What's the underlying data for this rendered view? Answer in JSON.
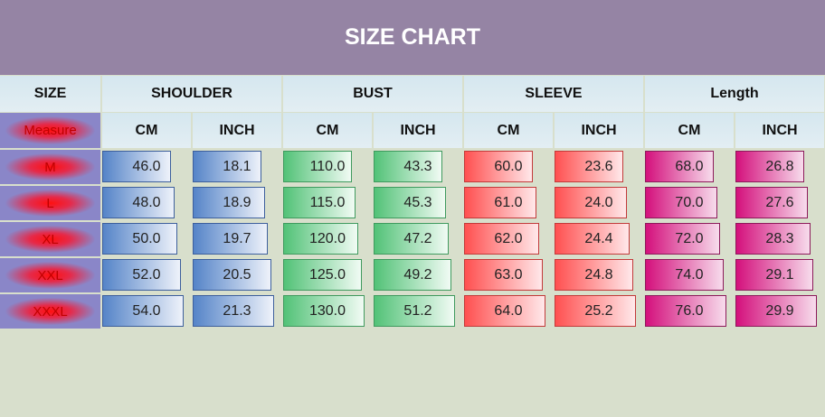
{
  "header": {
    "title": "SIZE CHART"
  },
  "table": {
    "group_header": [
      "SIZE",
      "SHOULDER",
      "BUST",
      "SLEEVE",
      "Length"
    ],
    "sub_header": [
      "Measure",
      "CM",
      "INCH",
      "CM",
      "INCH",
      "CM",
      "INCH",
      "CM",
      "INCH"
    ],
    "rows": [
      [
        "M",
        "46.0",
        "18.1",
        "110.0",
        "43.3",
        "60.0",
        "23.6",
        "68.0",
        "26.8"
      ],
      [
        "L",
        "48.0",
        "18.9",
        "115.0",
        "45.3",
        "61.0",
        "24.0",
        "70.0",
        "27.6"
      ],
      [
        "XL",
        "50.0",
        "19.7",
        "120.0",
        "47.2",
        "62.0",
        "24.4",
        "72.0",
        "28.3"
      ],
      [
        "XXL",
        "52.0",
        "20.5",
        "125.0",
        "49.2",
        "63.0",
        "24.8",
        "74.0",
        "29.1"
      ],
      [
        "XXXL",
        "54.0",
        "21.3",
        "130.0",
        "51.2",
        "64.0",
        "25.2",
        "76.0",
        "29.9"
      ]
    ]
  }
}
